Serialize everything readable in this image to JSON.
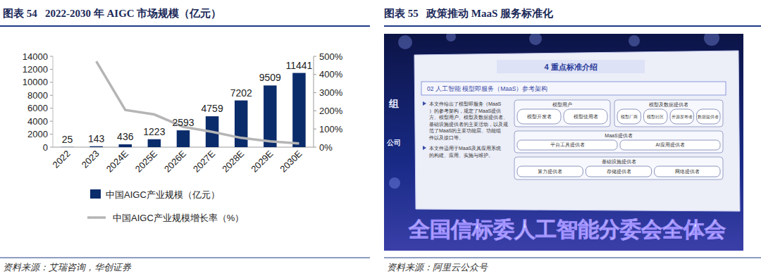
{
  "chart_data": {
    "type": "bar",
    "title": "图表 54   2022-2030 年 AIGC 市场规模（亿元）",
    "source": "资料来源：艾瑞咨询，华创证券",
    "categories": [
      "2022",
      "2023",
      "2024E",
      "2025E",
      "2026E",
      "2027E",
      "2028E",
      "2029E",
      "2030E"
    ],
    "series": [
      {
        "name": "中国AIGC产业规模（亿元）",
        "type": "bar",
        "color": "#0b2c6b",
        "data_labels": true,
        "values": [
          25,
          143,
          436,
          1223,
          2593,
          4759,
          7202,
          9509,
          11441
        ]
      },
      {
        "name": "中国AIGC产业规模增长率（%）",
        "type": "line",
        "color": "#b5b5b5",
        "axis": "y2",
        "line_style": "solid",
        "values": [
          null,
          472,
          205,
          180,
          112,
          84,
          51,
          32,
          20
        ]
      }
    ],
    "ylim": [
      0,
      14000
    ],
    "yticks": [
      0,
      2000,
      4000,
      6000,
      8000,
      10000,
      12000,
      14000
    ],
    "y2lim": [
      0,
      500
    ],
    "y2ticks": [
      {
        "value": 0,
        "label": "0%"
      },
      {
        "value": 100,
        "label": "100%"
      },
      {
        "value": 200,
        "label": "200%"
      },
      {
        "value": 300,
        "label": "300%"
      },
      {
        "value": 400,
        "label": "400%"
      },
      {
        "value": 500,
        "label": "500%"
      }
    ],
    "grid": false,
    "legend": "bottom"
  },
  "figure_55": {
    "title": "图表 55   政策推动 MaaS 服务标准化",
    "source": "资料来源：阿里云公众号",
    "photo": {
      "side_fragments": [
        "组",
        "公司"
      ],
      "slide": {
        "heading": "4 重点标准介绍",
        "subheading": "02 人工智能 模型即服务（MaaS）参考架构",
        "bullets": [
          "本文件给出了模型即服务（MaaS）的参考架构，规定了MaaS提供方、模型用户、模型及数据提供者、基础设施提供者的主要活动，以及规范了MaaS的主要功能层、功能组件以及接口等。",
          "本文件适用于MaaS及其应用系统的构建、应用、实施与维护。"
        ],
        "diagram": {
          "groups": [
            {
              "label": "模型用户",
              "items": [
                "模型开发者",
                "模型使用者"
              ]
            },
            {
              "label": "模型及数据提供者",
              "items": [
                "模型厂商",
                "模型社区",
                "开源发布者",
                "数据提供者"
              ]
            },
            {
              "label": "MaaS提供者",
              "items": [
                "平台工具提供者",
                "AI应用提供者"
              ]
            },
            {
              "label": "基础设施提供者",
              "items": [
                "算力提供者",
                "存储提供者",
                "网络提供者"
              ]
            }
          ]
        }
      },
      "banner": "全国信标委人工智能分委会全体会"
    }
  }
}
